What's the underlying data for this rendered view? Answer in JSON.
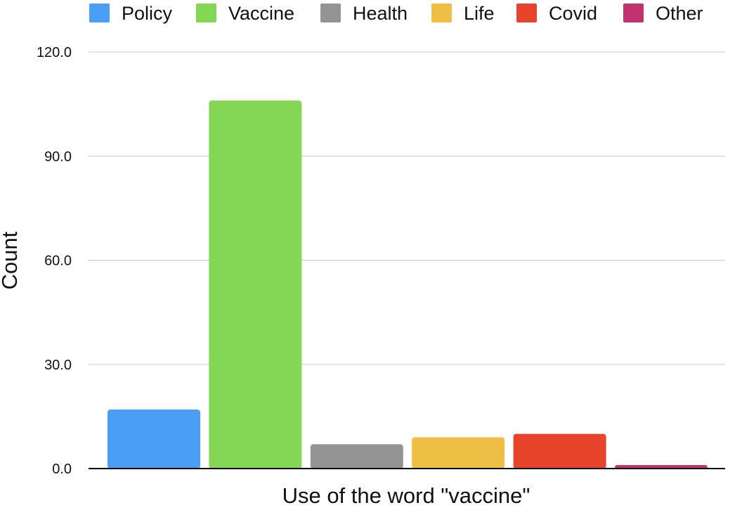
{
  "chart_data": {
    "type": "bar",
    "title": "",
    "xlabel": "Use of the word \"vaccine\"",
    "ylabel": "Count",
    "ylim": [
      0,
      120
    ],
    "yticks": [
      0,
      30,
      60,
      90,
      120
    ],
    "ytick_labels": [
      "0.0",
      "30.0",
      "60.0",
      "90.0",
      "120.0"
    ],
    "grid": true,
    "legend_position": "top",
    "categories": [
      "Policy",
      "Vaccine",
      "Health",
      "Life",
      "Covid",
      "Other"
    ],
    "values": [
      17,
      106,
      7,
      9,
      10,
      1
    ],
    "colors": [
      "#4a9ff5",
      "#84d655",
      "#949494",
      "#efbe44",
      "#e8442c",
      "#c23170"
    ]
  }
}
